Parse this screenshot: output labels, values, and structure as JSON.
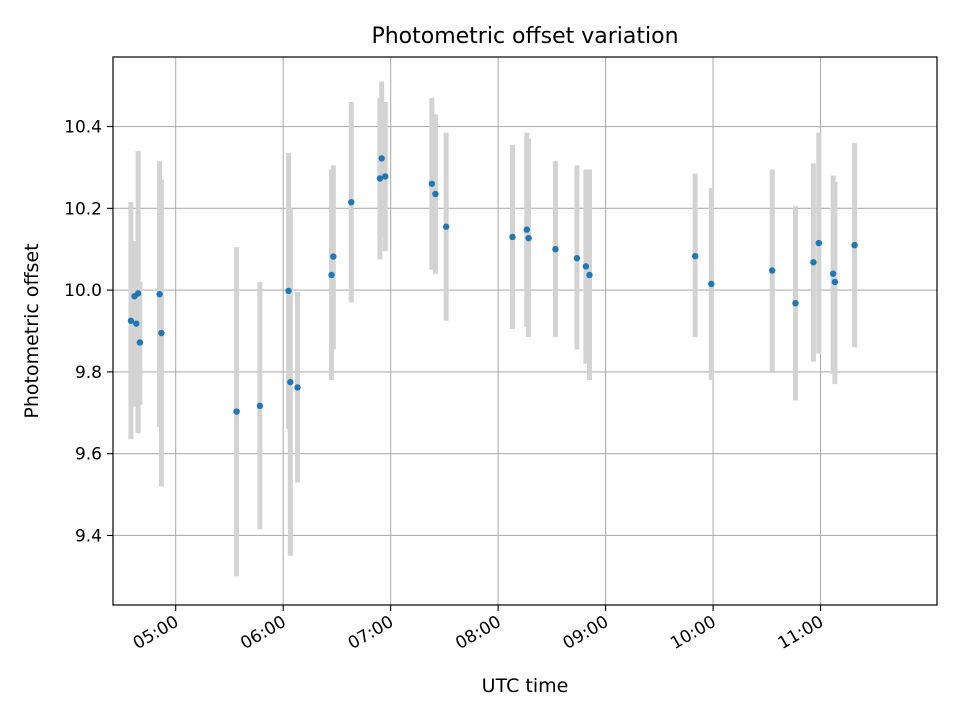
{
  "chart_data": {
    "type": "scatter",
    "title": "Photometric offset variation",
    "xlabel": "UTC time",
    "ylabel": "Photometric offset",
    "xlim": [
      "04:25",
      "12:05"
    ],
    "ylim": [
      9.23,
      10.57
    ],
    "x_ticks": [
      "05:00",
      "06:00",
      "07:00",
      "08:00",
      "09:00",
      "10:00",
      "11:00"
    ],
    "y_ticks": [
      "9.4",
      "9.6",
      "9.8",
      "10.0",
      "10.2",
      "10.4"
    ],
    "grid": true,
    "colors": {
      "point": "#1f77b4",
      "errorbar": "#d3d3d3",
      "grid": "#b0b0b0"
    },
    "points": [
      {
        "x": "04:35",
        "y": 9.925,
        "lo": 9.635,
        "hi": 10.215
      },
      {
        "x": "04:37",
        "y": 9.985,
        "lo": 9.715,
        "hi": 10.12
      },
      {
        "x": "04:38",
        "y": 9.918,
        "lo": 9.72,
        "hi": 10.12
      },
      {
        "x": "04:39",
        "y": 9.992,
        "lo": 9.65,
        "hi": 10.34
      },
      {
        "x": "04:40",
        "y": 9.872,
        "lo": 9.72,
        "hi": 10.02
      },
      {
        "x": "04:51",
        "y": 9.99,
        "lo": 9.665,
        "hi": 10.315
      },
      {
        "x": "04:52",
        "y": 9.895,
        "lo": 9.52,
        "hi": 10.27
      },
      {
        "x": "05:34",
        "y": 9.703,
        "lo": 9.3,
        "hi": 10.105
      },
      {
        "x": "05:47",
        "y": 9.717,
        "lo": 9.415,
        "hi": 10.02
      },
      {
        "x": "06:03",
        "y": 9.998,
        "lo": 9.66,
        "hi": 10.335
      },
      {
        "x": "06:04",
        "y": 9.775,
        "lo": 9.35,
        "hi": 10.2
      },
      {
        "x": "06:08",
        "y": 9.762,
        "lo": 9.53,
        "hi": 9.995
      },
      {
        "x": "06:27",
        "y": 10.037,
        "lo": 9.78,
        "hi": 10.295
      },
      {
        "x": "06:28",
        "y": 10.082,
        "lo": 9.855,
        "hi": 10.305
      },
      {
        "x": "06:38",
        "y": 10.215,
        "lo": 9.97,
        "hi": 10.46
      },
      {
        "x": "06:54",
        "y": 10.273,
        "lo": 10.075,
        "hi": 10.47
      },
      {
        "x": "06:55",
        "y": 10.322,
        "lo": 10.13,
        "hi": 10.51
      },
      {
        "x": "06:57",
        "y": 10.278,
        "lo": 10.095,
        "hi": 10.46
      },
      {
        "x": "07:23",
        "y": 10.26,
        "lo": 10.05,
        "hi": 10.47
      },
      {
        "x": "07:25",
        "y": 10.235,
        "lo": 10.04,
        "hi": 10.43
      },
      {
        "x": "07:31",
        "y": 10.155,
        "lo": 9.925,
        "hi": 10.385
      },
      {
        "x": "08:08",
        "y": 10.13,
        "lo": 9.905,
        "hi": 10.355
      },
      {
        "x": "08:16",
        "y": 10.148,
        "lo": 9.91,
        "hi": 10.385
      },
      {
        "x": "08:17",
        "y": 10.127,
        "lo": 9.885,
        "hi": 10.37
      },
      {
        "x": "08:32",
        "y": 10.1,
        "lo": 9.885,
        "hi": 10.315
      },
      {
        "x": "08:44",
        "y": 10.078,
        "lo": 9.855,
        "hi": 10.305
      },
      {
        "x": "08:49",
        "y": 10.058,
        "lo": 9.82,
        "hi": 10.295
      },
      {
        "x": "08:51",
        "y": 10.037,
        "lo": 9.78,
        "hi": 10.295
      },
      {
        "x": "09:50",
        "y": 10.083,
        "lo": 9.885,
        "hi": 10.285
      },
      {
        "x": "09:59",
        "y": 10.015,
        "lo": 9.78,
        "hi": 10.25
      },
      {
        "x": "10:33",
        "y": 10.048,
        "lo": 9.8,
        "hi": 10.295
      },
      {
        "x": "10:46",
        "y": 9.968,
        "lo": 9.73,
        "hi": 10.205
      },
      {
        "x": "10:56",
        "y": 10.068,
        "lo": 9.825,
        "hi": 10.31
      },
      {
        "x": "10:59",
        "y": 10.115,
        "lo": 9.845,
        "hi": 10.385
      },
      {
        "x": "11:07",
        "y": 10.04,
        "lo": 9.795,
        "hi": 10.28
      },
      {
        "x": "11:08",
        "y": 10.02,
        "lo": 9.77,
        "hi": 10.265
      },
      {
        "x": "11:19",
        "y": 10.11,
        "lo": 9.86,
        "hi": 10.36
      }
    ]
  }
}
